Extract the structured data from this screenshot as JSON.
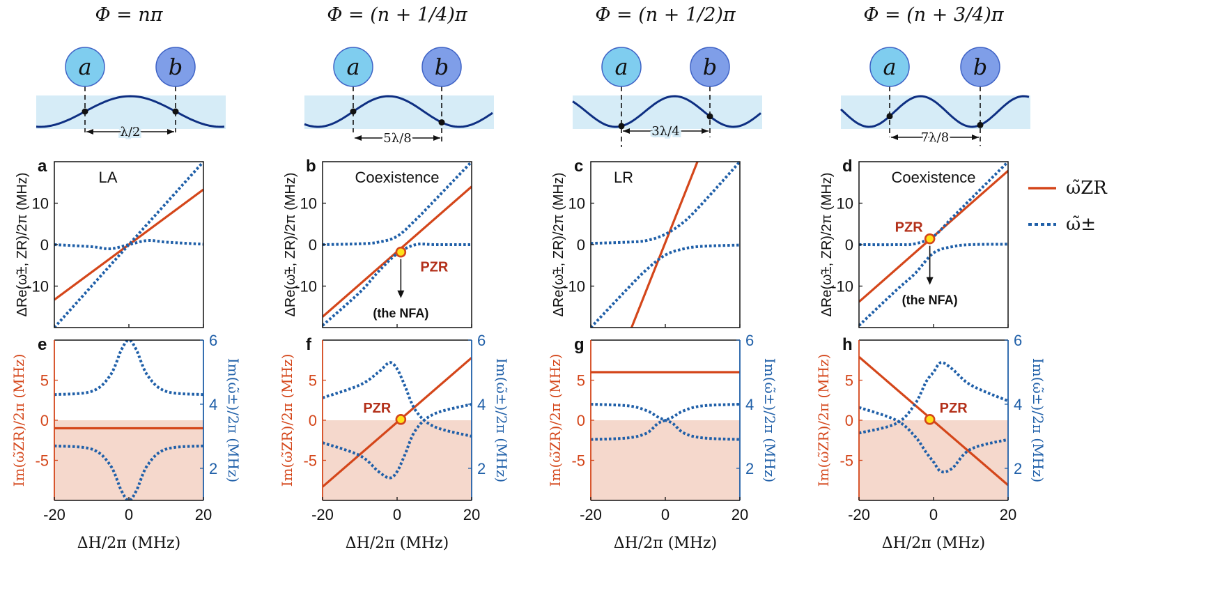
{
  "colors": {
    "zr": "#d4461a",
    "pm": "#1f5fa8",
    "shade": "#f5d8cc",
    "band": "#d6ecf7",
    "wave": "#0e2f82",
    "circle_a": "#7fcdef",
    "circle_b": "#7f9ee8",
    "pzr_fill": "#ffe21a"
  },
  "columns": [
    {
      "phi_title": "Φ = nπ",
      "spacing_label": "λ/2",
      "circle_labels": [
        "a",
        "b"
      ],
      "top_panel_letter": "a",
      "top_panel_regime": "LA",
      "bottom_panel_letter": "e"
    },
    {
      "phi_title": "Φ = (n + 1/4)π",
      "spacing_label": "5λ/8",
      "circle_labels": [
        "a",
        "b"
      ],
      "top_panel_letter": "b",
      "top_panel_regime": "Coexistence",
      "top_panel_annotation": "(the NFA)",
      "top_panel_point_label": "PZR",
      "bottom_panel_letter": "f",
      "bottom_panel_point_label": "PZR"
    },
    {
      "phi_title": "Φ = (n + 1/2)π",
      "spacing_label": "3λ/4",
      "circle_labels": [
        "a",
        "b"
      ],
      "top_panel_letter": "c",
      "top_panel_regime": "LR",
      "bottom_panel_letter": "g"
    },
    {
      "phi_title": "Φ = (n + 3/4)π",
      "spacing_label": "7λ/8",
      "circle_labels": [
        "a",
        "b"
      ],
      "top_panel_letter": "d",
      "top_panel_regime": "Coexistence",
      "top_panel_annotation": "(the NFA)",
      "top_panel_point_label": "PZR",
      "bottom_panel_letter": "h",
      "bottom_panel_point_label": "PZR"
    }
  ],
  "axis_labels": {
    "top_y": "ΔRe(ω̃±, ZR)/2π (MHz)",
    "bottom_left_y": "Im(ω̃ZR)/2π (MHz)",
    "bottom_right_y": "Im(ω̃±)/2π (MHz)",
    "x": "ΔH/2π (MHz)"
  },
  "legend": [
    {
      "label": "ω̃ZR",
      "style": "solid",
      "color_key": "zr"
    },
    {
      "label": "ω̃±",
      "style": "dotted",
      "color_key": "pm"
    }
  ],
  "chart_data": [
    {
      "panel": "a",
      "type": "line",
      "regime": "LA",
      "xlim": [
        -20,
        20
      ],
      "ylim": [
        -20,
        20
      ],
      "xticks": [
        -20,
        0,
        20
      ],
      "yticks": [
        -10,
        0,
        10
      ],
      "series": [
        {
          "name": "ω̃ZR",
          "x": [
            -20,
            20
          ],
          "y": [
            -13.3,
            13.3
          ]
        },
        {
          "name": "ω̃+",
          "x": [
            -20,
            -10,
            -5,
            0,
            5,
            10,
            20
          ],
          "y": [
            0,
            -0.5,
            -1,
            0,
            1,
            0.6,
            0.1
          ]
        },
        {
          "name": "ω̃−",
          "x": [
            -20,
            0,
            20
          ],
          "y": [
            -20,
            0,
            20
          ]
        }
      ]
    },
    {
      "panel": "b",
      "type": "line",
      "regime": "Coexistence",
      "xlim": [
        -20,
        20
      ],
      "ylim": [
        -20,
        20
      ],
      "xticks": [
        -20,
        0,
        20
      ],
      "yticks": [
        -10,
        0,
        10
      ],
      "series": [
        {
          "name": "ω̃ZR",
          "x": [
            -20,
            20
          ],
          "y": [
            -17.4,
            14
          ]
        },
        {
          "name": "ω̃+",
          "x": [
            -20,
            -10,
            -5,
            0,
            5,
            10,
            20
          ],
          "y": [
            -19.5,
            -11.5,
            -6.5,
            -2.2,
            0,
            0,
            0
          ]
        },
        {
          "name": "ω̃−",
          "x": [
            -20,
            -10,
            -5,
            0,
            5,
            10,
            20
          ],
          "y": [
            0,
            0.2,
            0.6,
            2,
            6,
            10.6,
            20
          ]
        }
      ],
      "points": [
        {
          "label": "PZR",
          "x": 1,
          "y": -1.8
        }
      ]
    },
    {
      "panel": "c",
      "type": "line",
      "regime": "LR",
      "xlim": [
        -20,
        20
      ],
      "ylim": [
        -20,
        20
      ],
      "xticks": [
        -20,
        0,
        20
      ],
      "yticks": [
        -10,
        0,
        10
      ],
      "series": [
        {
          "name": "ω̃ZR",
          "x": [
            -9.5,
            9.5
          ],
          "y": [
            -21,
            22
          ]
        },
        {
          "name": "ω̃+",
          "x": [
            -20,
            -10,
            -5,
            0,
            5,
            10,
            20
          ],
          "y": [
            0.3,
            0.6,
            1,
            2.5,
            5.5,
            10,
            20
          ]
        },
        {
          "name": "ω̃−",
          "x": [
            -20,
            -10,
            -5,
            0,
            5,
            10,
            20
          ],
          "y": [
            -20,
            -10.5,
            -6,
            -2.5,
            -1,
            -0.4,
            -0.1
          ]
        }
      ]
    },
    {
      "panel": "d",
      "type": "line",
      "regime": "Coexistence",
      "xlim": [
        -20,
        20
      ],
      "ylim": [
        -20,
        20
      ],
      "xticks": [
        -20,
        0,
        20
      ],
      "yticks": [
        -10,
        0,
        10
      ],
      "series": [
        {
          "name": "ω̃ZR",
          "x": [
            -20,
            20
          ],
          "y": [
            -13.8,
            17.8
          ]
        },
        {
          "name": "ω̃+",
          "x": [
            -20,
            -10,
            -5,
            0,
            5,
            10,
            20
          ],
          "y": [
            0,
            0,
            0.2,
            2,
            6.5,
            11,
            20
          ]
        },
        {
          "name": "ω̃−",
          "x": [
            -20,
            -10,
            -5,
            0,
            5,
            10,
            20
          ],
          "y": [
            -19.5,
            -11,
            -7,
            -2,
            -0.5,
            0,
            0.1
          ]
        }
      ],
      "points": [
        {
          "label": "PZR",
          "x": -1,
          "y": 1.4
        }
      ]
    },
    {
      "panel": "e",
      "type": "line",
      "xlim": [
        -20,
        20
      ],
      "ylim_left": [
        -10,
        10
      ],
      "ylim_right": [
        1,
        6
      ],
      "xticks": [
        -20,
        0,
        20
      ],
      "yticks_left": [
        -5,
        0,
        5
      ],
      "yticks_right": [
        2,
        4,
        6
      ],
      "shaded_region_left": [
        -10,
        0
      ],
      "series": [
        {
          "name": "Im ω̃ZR",
          "axis": "left",
          "x": [
            -20,
            20
          ],
          "y": [
            -1,
            -1
          ]
        },
        {
          "name": "Im ω̃+",
          "axis": "right",
          "x": [
            -20,
            -10,
            -5,
            -2,
            0,
            2,
            5,
            10,
            20
          ],
          "y": [
            4.3,
            4.4,
            4.9,
            5.7,
            6,
            5.7,
            4.9,
            4.4,
            4.3
          ]
        },
        {
          "name": "Im ω̃−",
          "axis": "right",
          "x": [
            -20,
            -10,
            -5,
            -2,
            0,
            2,
            5,
            10,
            20
          ],
          "y": [
            2.7,
            2.6,
            2.1,
            1.3,
            1,
            1.3,
            2.1,
            2.6,
            2.7
          ]
        }
      ]
    },
    {
      "panel": "f",
      "type": "line",
      "xlim": [
        -20,
        20
      ],
      "ylim_left": [
        -10,
        10
      ],
      "ylim_right": [
        1,
        6
      ],
      "xticks": [
        -20,
        0,
        20
      ],
      "yticks_left": [
        -5,
        0,
        5
      ],
      "yticks_right": [
        2,
        4,
        6
      ],
      "shaded_region_left": [
        -10,
        0
      ],
      "series": [
        {
          "name": "Im ω̃ZR",
          "axis": "left",
          "x": [
            -20,
            20
          ],
          "y": [
            -8.3,
            7.8
          ]
        },
        {
          "name": "Im ω̃+",
          "axis": "right",
          "x": [
            -20,
            -10,
            -5,
            -2,
            0,
            2,
            5,
            10,
            20
          ],
          "y": [
            4.2,
            4.6,
            5,
            5.3,
            5.1,
            4.6,
            3.8,
            3.3,
            3
          ]
        },
        {
          "name": "Im ω̃−",
          "axis": "right",
          "x": [
            -20,
            -10,
            -5,
            -2,
            0,
            2,
            5,
            10,
            20
          ],
          "y": [
            2.8,
            2.4,
            1.9,
            1.7,
            1.9,
            2.4,
            3.2,
            3.7,
            4
          ]
        }
      ],
      "points": [
        {
          "label": "PZR",
          "x": 1,
          "y": 0.1
        }
      ]
    },
    {
      "panel": "g",
      "type": "line",
      "xlim": [
        -20,
        20
      ],
      "ylim_left": [
        -10,
        10
      ],
      "ylim_right": [
        1,
        6
      ],
      "xticks": [
        -20,
        0,
        20
      ],
      "yticks_left": [
        -5,
        0,
        5
      ],
      "yticks_right": [
        2,
        4,
        6
      ],
      "shaded_region_left": [
        -10,
        0
      ],
      "series": [
        {
          "name": "Im ω̃ZR",
          "axis": "left",
          "x": [
            -20,
            20
          ],
          "y": [
            6,
            6
          ]
        },
        {
          "name": "Im ω̃+",
          "axis": "right",
          "x": [
            -20,
            -10,
            -5,
            -2,
            0,
            2,
            5,
            10,
            20
          ],
          "y": [
            4,
            3.95,
            3.8,
            3.6,
            3.5,
            3.4,
            3.1,
            2.95,
            2.9
          ]
        },
        {
          "name": "Im ω̃−",
          "axis": "right",
          "x": [
            -20,
            -10,
            -5,
            -2,
            0,
            2,
            5,
            10,
            20
          ],
          "y": [
            2.9,
            2.95,
            3.1,
            3.4,
            3.5,
            3.6,
            3.8,
            3.95,
            4
          ]
        }
      ]
    },
    {
      "panel": "h",
      "type": "line",
      "xlim": [
        -20,
        20
      ],
      "ylim_left": [
        -10,
        10
      ],
      "ylim_right": [
        1,
        6
      ],
      "xticks": [
        -20,
        0,
        20
      ],
      "yticks_left": [
        -5,
        0,
        5
      ],
      "yticks_right": [
        2,
        4,
        6
      ],
      "shaded_region_left": [
        -10,
        0
      ],
      "series": [
        {
          "name": "Im ω̃ZR",
          "axis": "left",
          "x": [
            -20,
            20
          ],
          "y": [
            7.9,
            -8.1
          ]
        },
        {
          "name": "Im ω̃+",
          "axis": "right",
          "x": [
            -20,
            -10,
            -5,
            -2,
            0,
            2,
            5,
            10,
            20
          ],
          "y": [
            3.9,
            3.5,
            3,
            2.5,
            2.2,
            1.9,
            2,
            2.6,
            2.9
          ]
        },
        {
          "name": "Im ω̃−",
          "axis": "right",
          "x": [
            -20,
            -10,
            -5,
            -2,
            0,
            2,
            5,
            10,
            20
          ],
          "y": [
            3.1,
            3.4,
            4,
            4.7,
            5,
            5.3,
            5.1,
            4.6,
            4.1
          ]
        }
      ],
      "points": [
        {
          "label": "PZR",
          "x": -1,
          "y": 0.1
        }
      ]
    }
  ]
}
